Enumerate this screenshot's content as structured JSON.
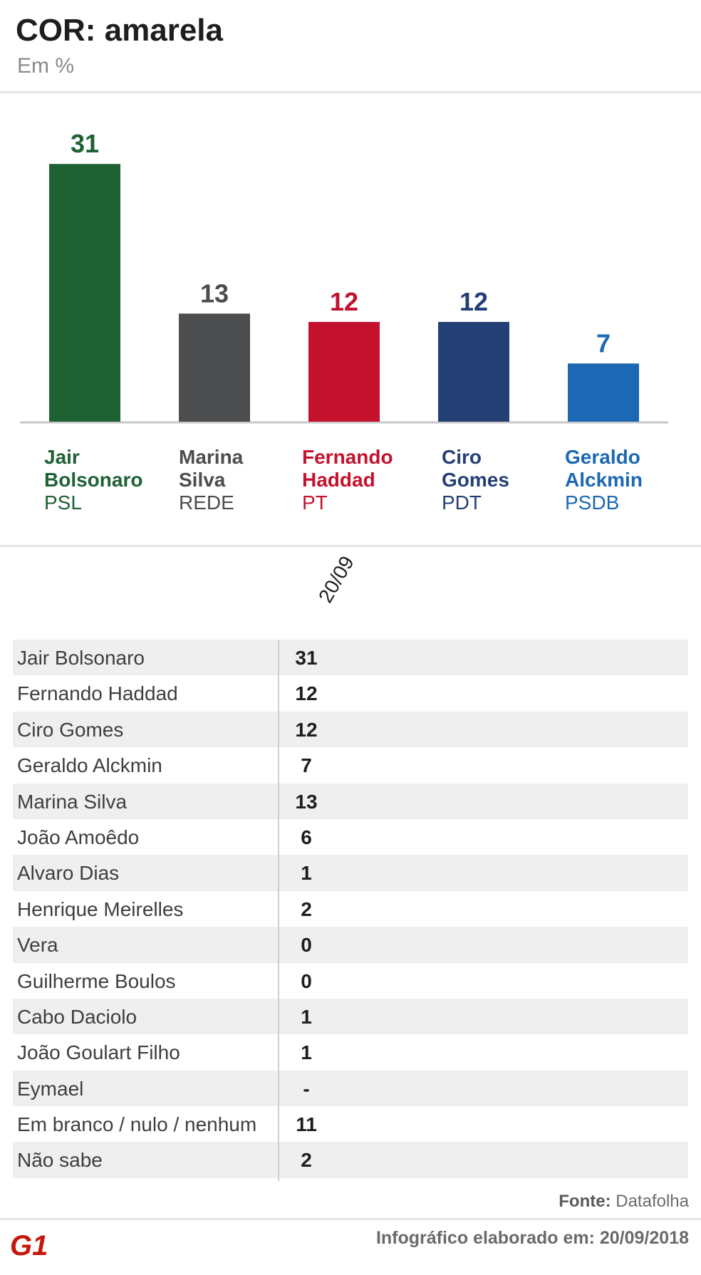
{
  "header": {
    "title": "COR: amarela",
    "subtitle": "Em %"
  },
  "chart_data": {
    "type": "bar",
    "categories": [
      "Jair Bolsonaro",
      "Marina Silva",
      "Fernando Haddad",
      "Ciro Gomes",
      "Geraldo Alckmin"
    ],
    "values": [
      31,
      13,
      12,
      12,
      7
    ],
    "value_labels": [
      "31",
      "13",
      "12",
      "12",
      "7"
    ],
    "parties": [
      "PSL",
      "REDE",
      "PT",
      "PDT",
      "PSDB"
    ],
    "colors": [
      "#1e6133",
      "#4b4d4e",
      "#c4122e",
      "#243f75",
      "#1c68b4"
    ],
    "ylim": [
      0,
      31
    ],
    "grid": false
  },
  "candidates": [
    {
      "name_line1": "Jair",
      "name_line2": "Bolsonaro",
      "party": "PSL"
    },
    {
      "name_line1": "Marina",
      "name_line2": "Silva",
      "party": "REDE"
    },
    {
      "name_line1": "Fernando",
      "name_line2": "Haddad",
      "party": "PT"
    },
    {
      "name_line1": "Ciro",
      "name_line2": "Gomes",
      "party": "PDT"
    },
    {
      "name_line1": "Geraldo",
      "name_line2": "Alckmin",
      "party": "PSDB"
    }
  ],
  "table": {
    "column_header": "20/09",
    "rows": [
      {
        "name": "Jair Bolsonaro",
        "value": "31"
      },
      {
        "name": "Fernando Haddad",
        "value": "12"
      },
      {
        "name": "Ciro Gomes",
        "value": "12"
      },
      {
        "name": "Geraldo Alckmin",
        "value": "7"
      },
      {
        "name": "Marina Silva",
        "value": "13"
      },
      {
        "name": "João Amoêdo",
        "value": "6"
      },
      {
        "name": "Alvaro Dias",
        "value": "1"
      },
      {
        "name": "Henrique Meirelles",
        "value": "2"
      },
      {
        "name": "Vera",
        "value": "0"
      },
      {
        "name": "Guilherme Boulos",
        "value": "0"
      },
      {
        "name": "Cabo Daciolo",
        "value": "1"
      },
      {
        "name": "João Goulart Filho",
        "value": "1"
      },
      {
        "name": "Eymael",
        "value": "-"
      },
      {
        "name": "Em branco / nulo / nenhum",
        "value": "11"
      },
      {
        "name": "Não sabe",
        "value": "2"
      }
    ]
  },
  "footer": {
    "source_label": "Fonte:",
    "source_value": "Datafolha",
    "note": "Infográfico elaborado em: 20/09/2018",
    "logo_text": "G1",
    "logo_color": "#c4170c"
  }
}
